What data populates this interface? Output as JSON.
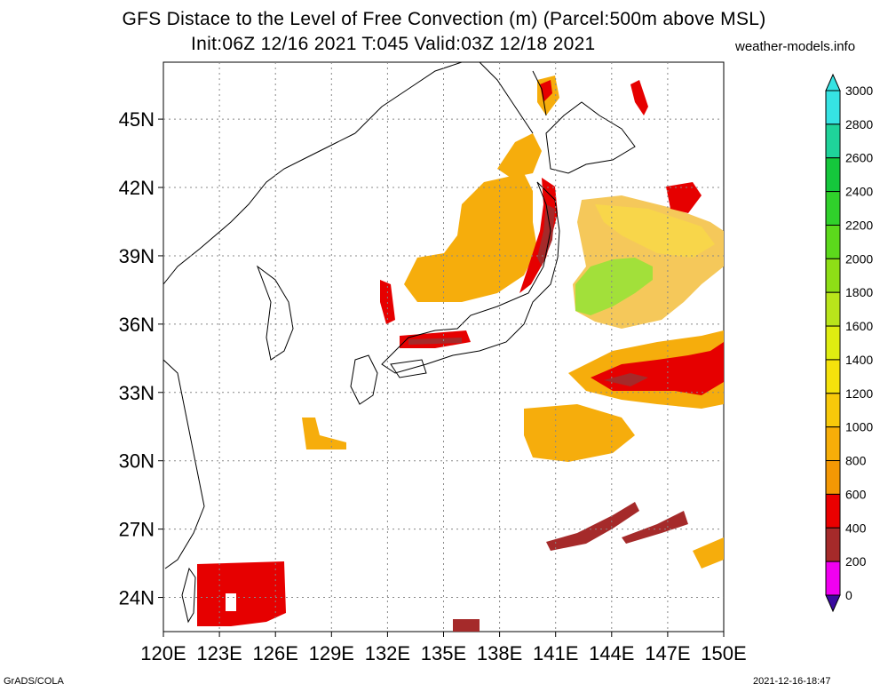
{
  "header": {
    "title_line1": "GFS Distace to the Level of Free Convection (m) (Parcel:500m above MSL)",
    "title_line2": "Init:06Z 12/16 2021 T:045 Valid:03Z 12/18 2021",
    "site": "weather-models.info"
  },
  "footer": {
    "left": "GrADS/COLA",
    "right": "2021-12-16-18:47"
  },
  "map": {
    "lat_labels": [
      "45N",
      "42N",
      "39N",
      "36N",
      "33N",
      "30N",
      "27N",
      "24N"
    ],
    "lat_values": [
      45,
      42,
      39,
      36,
      33,
      30,
      27,
      24
    ],
    "lon_labels": [
      "120E",
      "123E",
      "126E",
      "129E",
      "132E",
      "135E",
      "138E",
      "141E",
      "144E",
      "147E",
      "150E"
    ],
    "lon_values": [
      120,
      123,
      126,
      129,
      132,
      135,
      138,
      141,
      144,
      147,
      150
    ],
    "lon_range": [
      120,
      150
    ],
    "lat_range": [
      22.5,
      47.5
    ],
    "gridlines": "dotted",
    "field": "LFC distance (m)"
  },
  "colorbar": {
    "labels": [
      "3000",
      "2800",
      "2600",
      "2400",
      "2200",
      "2000",
      "1800",
      "1600",
      "1400",
      "1200",
      "1000",
      "800",
      "600",
      "400",
      "200",
      "0"
    ],
    "colors": [
      "#36e3e3",
      "#1fd39a",
      "#15c73c",
      "#30d12b",
      "#5cd91c",
      "#8ede16",
      "#b9e51b",
      "#dfed11",
      "#f5e20c",
      "#f8c90a",
      "#f7ae08",
      "#f49804",
      "#ea0000",
      "#a52a2a",
      "#f000f0",
      "#3a0aa0"
    ],
    "position": "right"
  }
}
